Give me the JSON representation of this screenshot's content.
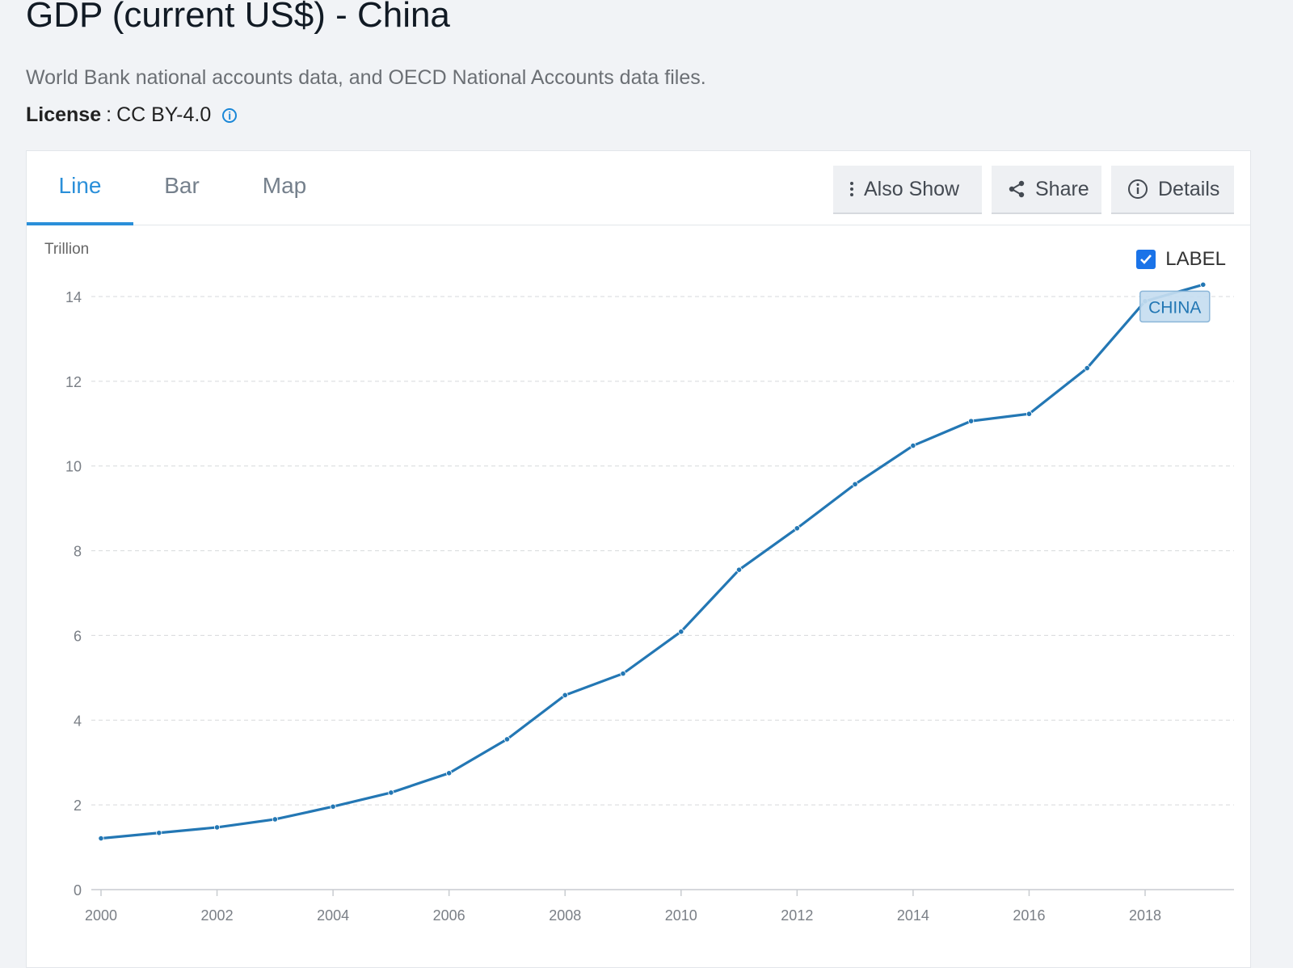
{
  "header": {
    "title": "GDP (current US$) - China",
    "source": "World Bank national accounts data, and OECD National Accounts data files.",
    "license_label": "License",
    "license_sep": ":",
    "license_value": "CC BY-4.0",
    "info_icon": "i"
  },
  "tabs": [
    {
      "label": "Line",
      "active": true
    },
    {
      "label": "Bar",
      "active": false
    },
    {
      "label": "Map",
      "active": false
    }
  ],
  "toolbar": {
    "also_show_label": "Also Show",
    "share_label": "Share",
    "details_label": "Details"
  },
  "label_toggle": {
    "label": "LABEL",
    "checked": true
  },
  "colors": {
    "accent": "#2a8fd9",
    "line": "#2377b4",
    "checkbox": "#1a73e8"
  },
  "chart_data": {
    "type": "line",
    "ylabel": "Trillion",
    "ylim": [
      0,
      14
    ],
    "yticks": [
      0,
      2,
      4,
      6,
      8,
      10,
      12,
      14
    ],
    "xticks": [
      2000,
      2002,
      2004,
      2006,
      2008,
      2010,
      2012,
      2014,
      2016,
      2018
    ],
    "grid": true,
    "series": [
      {
        "name": "CHINA",
        "x": [
          2000,
          2001,
          2002,
          2003,
          2004,
          2005,
          2006,
          2007,
          2008,
          2009,
          2010,
          2011,
          2012,
          2013,
          2014,
          2015,
          2016,
          2017,
          2018,
          2019
        ],
        "values": [
          1.21,
          1.34,
          1.47,
          1.66,
          1.96,
          2.29,
          2.75,
          3.55,
          4.59,
          5.1,
          6.09,
          7.55,
          8.53,
          9.57,
          10.48,
          11.06,
          11.23,
          12.31,
          13.89,
          14.28
        ]
      }
    ]
  }
}
